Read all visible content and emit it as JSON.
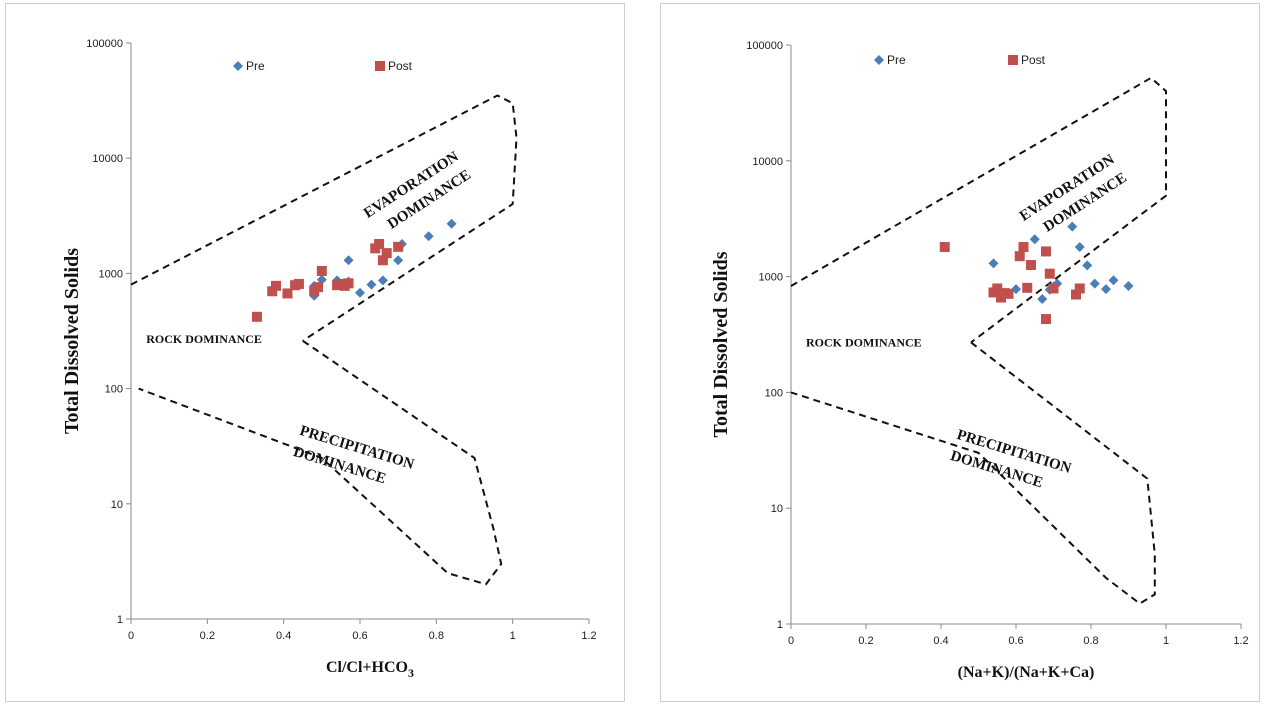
{
  "chart_data": [
    {
      "type": "scatter",
      "xlabel": "Cl/Cl+HCO3",
      "ylabel": "Total Dissolved Solids",
      "xlim": [
        0,
        1.2
      ],
      "ylim": [
        1,
        100000
      ],
      "yscale": "log",
      "xticks": [
        "0",
        "0.2",
        "0.4",
        "0.6",
        "0.8",
        "1",
        "1.2"
      ],
      "yticks": [
        "1",
        "10",
        "100",
        "1000",
        "10000",
        "100000"
      ],
      "grid": false,
      "legend": "top",
      "region_labels": {
        "evaporation": [
          "EVAPORATION",
          "DOMINANCE"
        ],
        "rock": "ROCK DOMINANCE",
        "precipitation": [
          "PRECIPITATION",
          "DOMINANCE"
        ]
      },
      "series": [
        {
          "name": "Pre",
          "color": "#4a7ebb",
          "marker": "diamond",
          "points": [
            [
              0.48,
              640
            ],
            [
              0.48,
              780
            ],
            [
              0.5,
              880
            ],
            [
              0.54,
              870
            ],
            [
              0.57,
              1300
            ],
            [
              0.57,
              850
            ],
            [
              0.6,
              680
            ],
            [
              0.63,
              800
            ],
            [
              0.66,
              870
            ],
            [
              0.7,
              1300
            ],
            [
              0.71,
              1800
            ],
            [
              0.78,
              2100
            ],
            [
              0.84,
              2700
            ]
          ]
        },
        {
          "name": "Post",
          "color": "#c0504d",
          "marker": "square",
          "points": [
            [
              0.33,
              420
            ],
            [
              0.37,
              700
            ],
            [
              0.38,
              780
            ],
            [
              0.41,
              670
            ],
            [
              0.43,
              790
            ],
            [
              0.44,
              810
            ],
            [
              0.48,
              700
            ],
            [
              0.49,
              760
            ],
            [
              0.5,
              1050
            ],
            [
              0.54,
              790
            ],
            [
              0.55,
              810
            ],
            [
              0.56,
              780
            ],
            [
              0.57,
              820
            ],
            [
              0.64,
              1650
            ],
            [
              0.65,
              1800
            ],
            [
              0.66,
              1300
            ],
            [
              0.67,
              1500
            ],
            [
              0.7,
              1700
            ]
          ]
        }
      ]
    },
    {
      "type": "scatter",
      "xlabel": "(Na+K)/(Na+K+Ca)",
      "ylabel": "Total Dissolved Solids",
      "xlim": [
        0,
        1.2
      ],
      "ylim": [
        1,
        100000
      ],
      "yscale": "log",
      "xticks": [
        "0",
        "0.2",
        "0.4",
        "0.6",
        "0.8",
        "1",
        "1.2"
      ],
      "yticks": [
        "1",
        "10",
        "100",
        "1000",
        "10000",
        "100000"
      ],
      "grid": false,
      "legend": "top",
      "region_labels": {
        "evaporation": [
          "EVAPORATION",
          "DOMINANCE"
        ],
        "rock": "ROCK DOMINANCE",
        "precipitation": [
          "PRECIPITATION",
          "DOMINANCE"
        ]
      },
      "series": [
        {
          "name": "Pre",
          "color": "#4a7ebb",
          "marker": "diamond",
          "points": [
            [
              0.54,
              1300
            ],
            [
              0.6,
              780
            ],
            [
              0.65,
              2100
            ],
            [
              0.67,
              640
            ],
            [
              0.69,
              770
            ],
            [
              0.7,
              820
            ],
            [
              0.71,
              870
            ],
            [
              0.75,
              2700
            ],
            [
              0.77,
              1800
            ],
            [
              0.79,
              1250
            ],
            [
              0.81,
              870
            ],
            [
              0.84,
              780
            ],
            [
              0.86,
              930
            ],
            [
              0.9,
              830
            ]
          ]
        },
        {
          "name": "Post",
          "color": "#c0504d",
          "marker": "square",
          "points": [
            [
              0.41,
              1800
            ],
            [
              0.54,
              730
            ],
            [
              0.55,
              790
            ],
            [
              0.56,
              660
            ],
            [
              0.57,
              720
            ],
            [
              0.58,
              710
            ],
            [
              0.61,
              1500
            ],
            [
              0.62,
              1800
            ],
            [
              0.63,
              800
            ],
            [
              0.64,
              1260
            ],
            [
              0.68,
              430
            ],
            [
              0.68,
              1650
            ],
            [
              0.69,
              1060
            ],
            [
              0.7,
              790
            ],
            [
              0.76,
              700
            ],
            [
              0.77,
              790
            ]
          ]
        }
      ]
    }
  ]
}
